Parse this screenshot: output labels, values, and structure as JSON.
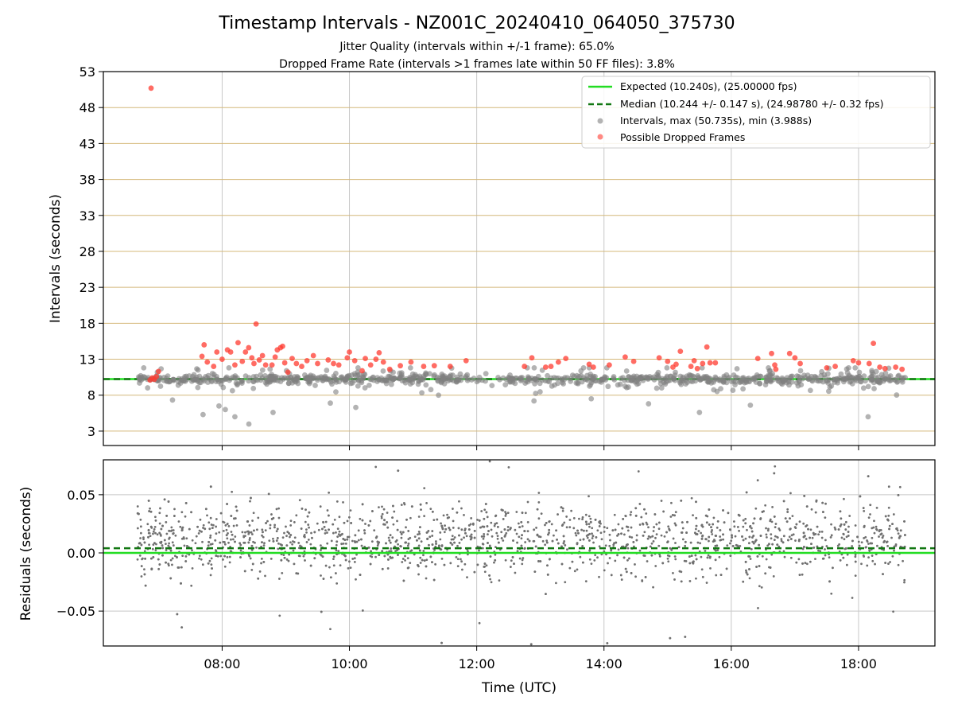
{
  "chart_data": [
    {
      "type": "scatter",
      "title": "Timestamp Intervals - NZ001C_20240410_064050_375730",
      "subtitle_lines": [
        "Jitter Quality (intervals within +/-1 frame): 65.0%",
        "Dropped Frame Rate (intervals >1 frames late within 50 FF files): 3.8%"
      ],
      "xlabel": "",
      "ylabel": "Intervals (seconds)",
      "xlim": [
        "06:08",
        "19:12"
      ],
      "ylim": [
        1,
        53
      ],
      "yticks": [
        3,
        8,
        13,
        18,
        23,
        28,
        33,
        38,
        43,
        48,
        53
      ],
      "xticks": [
        "08:00",
        "10:00",
        "12:00",
        "14:00",
        "16:00",
        "18:00"
      ],
      "grid": true,
      "legend_position": "top-right",
      "legend": [
        "Expected (10.240s), (25.00000 fps)",
        "Median (10.244 +/- 0.147 s), (24.98780 +/- 0.32 fps)",
        "Intervals, max (50.735s), min (3.988s)",
        "Possible Dropped Frames"
      ],
      "reference_lines": [
        {
          "value": 10.24,
          "style": "solid",
          "color": "#22dd22"
        },
        {
          "value": 10.244,
          "style": "dashed",
          "color": "#117711"
        }
      ],
      "series": [
        {
          "name": "Possible Dropped Frames",
          "color": "#ff3b30",
          "points": [
            [
              "06:53",
              50.7
            ],
            [
              "06:52",
              10.1
            ],
            [
              "06:54",
              10.4
            ],
            [
              "06:56",
              10.2
            ],
            [
              "06:58",
              10.6
            ],
            [
              "07:00",
              11.3
            ],
            [
              "07:41",
              13.4
            ],
            [
              "07:43",
              15.0
            ],
            [
              "07:46",
              12.6
            ],
            [
              "07:52",
              12.0
            ],
            [
              "07:55",
              14.0
            ],
            [
              "08:00",
              13.0
            ],
            [
              "08:05",
              14.3
            ],
            [
              "08:08",
              14.0
            ],
            [
              "08:12",
              12.2
            ],
            [
              "08:15",
              15.3
            ],
            [
              "08:19",
              12.7
            ],
            [
              "08:22",
              14.0
            ],
            [
              "08:25",
              14.6
            ],
            [
              "08:28",
              13.2
            ],
            [
              "08:30",
              12.4
            ],
            [
              "08:32",
              17.9
            ],
            [
              "08:35",
              12.9
            ],
            [
              "08:38",
              13.5
            ],
            [
              "08:41",
              12.2
            ],
            [
              "08:47",
              12.2
            ],
            [
              "08:50",
              13.3
            ],
            [
              "08:52",
              14.3
            ],
            [
              "08:55",
              14.6
            ],
            [
              "08:57",
              14.8
            ],
            [
              "08:59",
              12.5
            ],
            [
              "09:02",
              11.2
            ],
            [
              "09:06",
              13.1
            ],
            [
              "09:10",
              12.4
            ],
            [
              "09:15",
              12.0
            ],
            [
              "09:20",
              12.8
            ],
            [
              "09:26",
              13.5
            ],
            [
              "09:30",
              12.4
            ],
            [
              "09:40",
              12.9
            ],
            [
              "09:45",
              12.4
            ],
            [
              "09:50",
              12.2
            ],
            [
              "09:58",
              13.2
            ],
            [
              "10:00",
              14.0
            ],
            [
              "10:05",
              12.8
            ],
            [
              "10:12",
              11.4
            ],
            [
              "10:15",
              13.1
            ],
            [
              "10:20",
              12.2
            ],
            [
              "10:25",
              13.0
            ],
            [
              "10:28",
              13.9
            ],
            [
              "10:32",
              12.6
            ],
            [
              "10:38",
              11.6
            ],
            [
              "10:48",
              12.1
            ],
            [
              "10:58",
              12.6
            ],
            [
              "11:10",
              12.0
            ],
            [
              "11:20",
              12.1
            ],
            [
              "11:35",
              12.0
            ],
            [
              "11:50",
              12.8
            ],
            [
              "12:45",
              12.0
            ],
            [
              "12:52",
              13.2
            ],
            [
              "13:05",
              11.9
            ],
            [
              "13:10",
              12.0
            ],
            [
              "13:17",
              12.6
            ],
            [
              "13:24",
              13.1
            ],
            [
              "13:46",
              12.3
            ],
            [
              "13:50",
              11.9
            ],
            [
              "14:05",
              12.2
            ],
            [
              "14:20",
              13.3
            ],
            [
              "14:28",
              12.7
            ],
            [
              "14:52",
              13.2
            ],
            [
              "15:00",
              12.7
            ],
            [
              "15:05",
              11.9
            ],
            [
              "15:08",
              12.3
            ],
            [
              "15:12",
              14.1
            ],
            [
              "15:22",
              12.0
            ],
            [
              "15:25",
              12.8
            ],
            [
              "15:28",
              11.7
            ],
            [
              "15:33",
              12.4
            ],
            [
              "15:37",
              14.7
            ],
            [
              "15:40",
              12.5
            ],
            [
              "15:45",
              12.5
            ],
            [
              "16:25",
              13.1
            ],
            [
              "16:38",
              13.8
            ],
            [
              "16:41",
              12.2
            ],
            [
              "16:42",
              11.6
            ],
            [
              "16:55",
              13.8
            ],
            [
              "17:00",
              13.2
            ],
            [
              "17:05",
              12.4
            ],
            [
              "17:30",
              11.8
            ],
            [
              "17:38",
              12.0
            ],
            [
              "17:55",
              12.8
            ],
            [
              "18:00",
              12.5
            ],
            [
              "18:10",
              12.4
            ],
            [
              "18:14",
              15.2
            ],
            [
              "18:20",
              11.9
            ],
            [
              "18:25",
              11.7
            ],
            [
              "18:35",
              11.9
            ],
            [
              "18:41",
              11.6
            ]
          ]
        },
        {
          "name": "Intervals, max (50.735s), min (3.988s)",
          "color": "#808080",
          "generated_note": "",
          "x_range": [
            "06:40",
            "18:44"
          ],
          "central_value": 10.24
        }
      ]
    },
    {
      "type": "scatter",
      "title": "",
      "xlabel": "Time (UTC)",
      "ylabel": "Residuals (seconds)",
      "xlim": [
        "06:08",
        "19:12"
      ],
      "ylim": [
        -0.08,
        0.08
      ],
      "yticks": [
        0.05,
        0.0,
        -0.05
      ],
      "ytick_labels": [
        "0.05",
        "0.00",
        "−0.05"
      ],
      "xticks": [
        "08:00",
        "10:00",
        "12:00",
        "14:00",
        "16:00",
        "18:00"
      ],
      "grid": true,
      "reference_lines": [
        {
          "value": 0.0,
          "style": "solid",
          "color": "#22dd22"
        },
        {
          "value": 0.004,
          "style": "dashed",
          "color": "#117711"
        }
      ],
      "series": [
        {
          "name": "",
          "color": "#707070",
          "x_range": [
            "06:40",
            "18:44"
          ]
        }
      ]
    }
  ]
}
